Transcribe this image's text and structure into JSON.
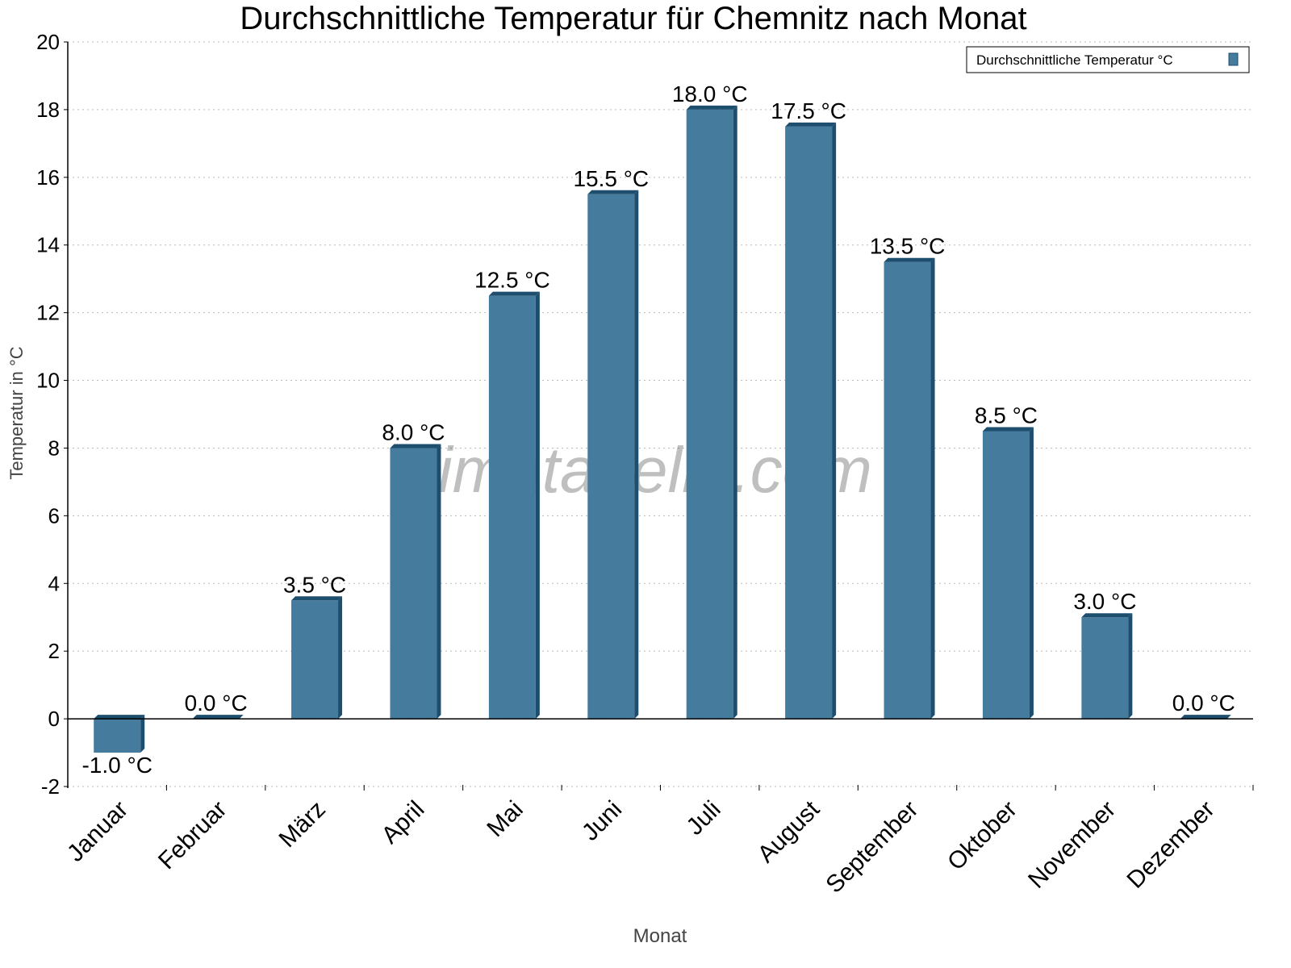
{
  "chart_data": {
    "type": "bar",
    "title": "Durchschnittliche Temperatur für Chemnitz nach Monat",
    "xlabel": "Monat",
    "ylabel": "Temperatur in °C",
    "ylim": [
      -2,
      20
    ],
    "yticks": [
      -2,
      0,
      2,
      4,
      6,
      8,
      10,
      12,
      14,
      16,
      18,
      20
    ],
    "grid": true,
    "legend_position": "top-right",
    "categories": [
      "Januar",
      "Februar",
      "März",
      "April",
      "Mai",
      "Juni",
      "Juli",
      "August",
      "September",
      "Oktober",
      "November",
      "Dezember"
    ],
    "series": [
      {
        "name": "Durchschnittliche Temperatur °C",
        "color": "#457b9d",
        "side_color": "#1d4e6e",
        "values": [
          -1.0,
          0.0,
          3.5,
          8.0,
          12.5,
          15.5,
          18.0,
          17.5,
          13.5,
          8.5,
          3.0,
          0.0
        ]
      }
    ],
    "data_labels": [
      "-1.0 °C",
      "0.0 °C",
      "3.5 °C",
      "8.0 °C",
      "12.5 °C",
      "15.5 °C",
      "18.0 °C",
      "17.5 °C",
      "13.5 °C",
      "8.5 °C",
      "3.0 °C",
      "0.0 °C"
    ],
    "watermark": "klimatabelle.com"
  }
}
